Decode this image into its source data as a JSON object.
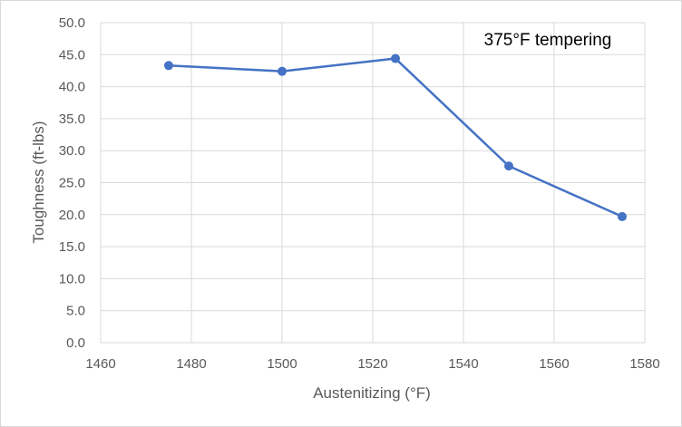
{
  "chart_data": {
    "type": "line",
    "xlabel": "Austenitizing (°F)",
    "ylabel": "Toughness (ft-lbs)",
    "annotation": "375°F tempering",
    "xlim": [
      1460,
      1580
    ],
    "ylim": [
      0,
      50
    ],
    "x_ticks": [
      "1460",
      "1480",
      "1500",
      "1520",
      "1540",
      "1560",
      "1580"
    ],
    "y_ticks": [
      "0.0",
      "5.0",
      "10.0",
      "15.0",
      "20.0",
      "25.0",
      "30.0",
      "35.0",
      "40.0",
      "45.0",
      "50.0"
    ],
    "grid": true,
    "series": [
      {
        "color": "#4472c4",
        "x": [
          1475,
          1500,
          1525,
          1550,
          1575
        ],
        "y": [
          43.3,
          42.4,
          44.4,
          27.6,
          19.7
        ]
      }
    ]
  }
}
